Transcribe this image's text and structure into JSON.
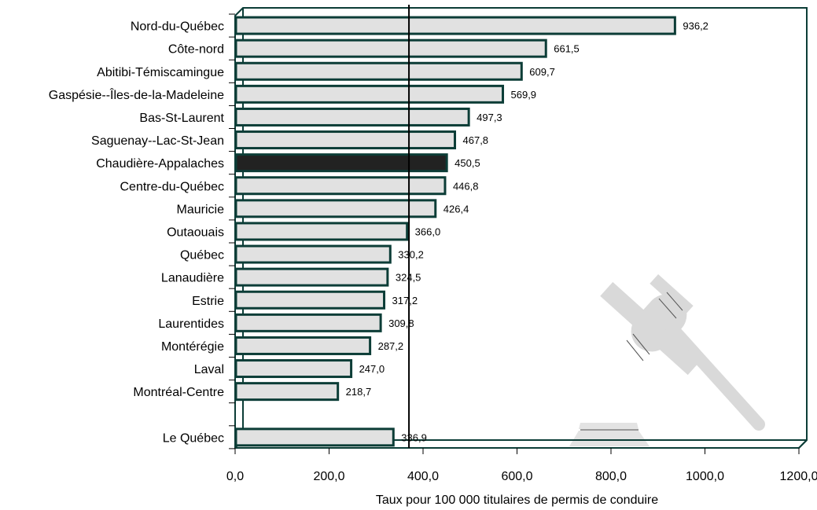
{
  "chart_data": {
    "type": "bar",
    "orientation": "horizontal",
    "categories": [
      "Nord-du-Québec",
      "Côte-nord",
      "Abitibi-Témiscamingue",
      "Gaspésie--Îles-de-la-Madeleine",
      "Bas-St-Laurent",
      "Saguenay--Lac-St-Jean",
      "Chaudière-Appalaches",
      "Centre-du-Québec",
      "Mauricie",
      "Outaouais",
      "Québec",
      "Lanaudière",
      "Estrie",
      "Laurentides",
      "Montérégie",
      "Laval",
      "Montréal-Centre",
      "",
      "Le Québec"
    ],
    "values": [
      936.2,
      661.5,
      609.7,
      569.9,
      497.3,
      467.8,
      450.5,
      446.8,
      426.4,
      366.0,
      330.2,
      324.5,
      317.2,
      309.8,
      287.2,
      247.0,
      218.7,
      null,
      336.9
    ],
    "value_labels": [
      "936,2",
      "661,5",
      "609,7",
      "569,9",
      "497,3",
      "467,8",
      "450,5",
      "446,8",
      "426,4",
      "366,0",
      "330,2",
      "324,5",
      "317,2",
      "309,8",
      "287,2",
      "247,0",
      "218,7",
      "",
      "336,9"
    ],
    "highlight_category": "Chaudière-Appalaches",
    "reference_line_value": 370,
    "xlabel": "Taux pour 100 000 titulaires de permis de conduire",
    "xlim": [
      0,
      1200
    ],
    "xticks": [
      0,
      200,
      400,
      600,
      800,
      1000,
      1200
    ],
    "xtick_labels": [
      "0,0",
      "200,0",
      "400,0",
      "600,0",
      "800,0",
      "1000,0",
      "1200,0"
    ],
    "grid": false,
    "legend": "none",
    "colors": {
      "bar_fill": "#e1e1e1",
      "bar_stroke": "#0c3d37",
      "highlight_fill": "#222222",
      "frame": "#0c3d37",
      "decoration": "#d9d9d9"
    }
  },
  "decoration": {
    "icon": "gavel-icon"
  }
}
